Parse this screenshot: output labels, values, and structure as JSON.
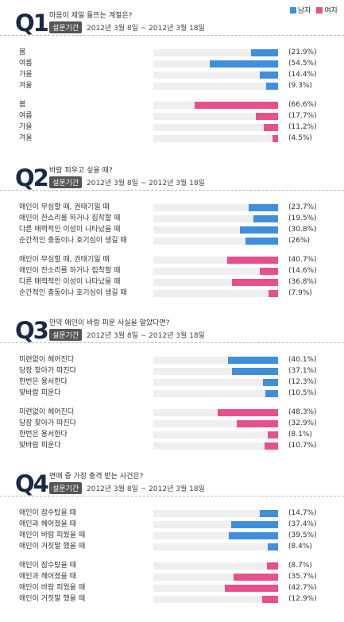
{
  "legend": {
    "male": "남자",
    "female": "여자"
  },
  "colors": {
    "male": "#3f8fdc",
    "female": "#e8508b",
    "track": "#efefef"
  },
  "chart_data": [
    {
      "type": "bar",
      "qnum": "Q1",
      "title": "마음이 제일 들뜨는 계절은?",
      "badge": "설문기간",
      "period": "2012년 3월 8일 ~ 2012년 3월 18일",
      "categories": [
        "봄",
        "여름",
        "가을",
        "겨울"
      ],
      "series": [
        {
          "name": "남자",
          "values": [
            21.9,
            54.5,
            14.4,
            9.3
          ],
          "labels": [
            "(21.9%)",
            "(54.5%)",
            "(14.4%)",
            "(9.3%)"
          ]
        },
        {
          "name": "여자",
          "values": [
            66.6,
            17.7,
            11.2,
            4.5
          ],
          "labels": [
            "(66.6%)",
            "(17.7%)",
            "(11.2%)",
            "(4.5%)"
          ]
        }
      ]
    },
    {
      "type": "bar",
      "qnum": "Q2",
      "title": "바람 피우고 싶을 때?",
      "badge": "설문기간",
      "period": "2012년 3월 8일 ~ 2012년 3월 18일",
      "categories": [
        "애인이 무심할 때, 권태기일 때",
        "애인이 잔소리를 하거나 집착할 때",
        "다른 매력적인 이성이 나타났을 때",
        "순간적인 충동이나 호기심이 생길 때"
      ],
      "series": [
        {
          "name": "남자",
          "values": [
            23.7,
            19.5,
            30.8,
            26
          ],
          "labels": [
            "(23.7%)",
            "(19.5%)",
            "(30.8%)",
            "(26%)"
          ]
        },
        {
          "name": "여자",
          "values": [
            40.7,
            14.6,
            36.8,
            7.9
          ],
          "labels": [
            "(40.7%)",
            "(14.6%)",
            "(36.8%)",
            "(7.9%)"
          ]
        }
      ]
    },
    {
      "type": "bar",
      "qnum": "Q3",
      "title": "만약 애인이 바람 피운 사실을 알았다면?",
      "badge": "설문기간",
      "period": "2012년 3월 8일 ~ 2012년 3월 18일",
      "categories": [
        "미련없이 헤어진다",
        "당장 찾아가 따진다",
        "한번은 용서한다",
        "맞바람 피운다"
      ],
      "series": [
        {
          "name": "남자",
          "values": [
            40.1,
            37.1,
            12.3,
            10.5
          ],
          "labels": [
            "(40.1%)",
            "(37.1%)",
            "(12.3%)",
            "(10.5%)"
          ]
        },
        {
          "name": "여자",
          "values": [
            48.3,
            32.9,
            8.1,
            10.7
          ],
          "labels": [
            "(48.3%)",
            "(32.9%)",
            "(8.1%)",
            "(10.7%)"
          ]
        }
      ]
    },
    {
      "type": "bar",
      "qnum": "Q4",
      "title": "연애 중 가장 충격 받는 사건은?",
      "badge": "설문기간",
      "period": "2012년 3월 8일 ~ 2012년 3월 18일",
      "categories": [
        "애인이 잠수탔을 때",
        "애인과 헤어졌을 때",
        "애인이 바람 피웠을 때",
        "애인이 거짓말 했을 때"
      ],
      "series": [
        {
          "name": "남자",
          "values": [
            14.7,
            37.4,
            39.5,
            8.4
          ],
          "labels": [
            "(14.7%)",
            "(37.4%)",
            "(39.5%)",
            "(8.4%)"
          ]
        },
        {
          "name": "여자",
          "values": [
            8.7,
            35.7,
            42.7,
            12.9
          ],
          "labels": [
            "(8.7%)",
            "(35.7%)",
            "(42.7%)",
            "(12.9%)"
          ]
        }
      ]
    }
  ]
}
